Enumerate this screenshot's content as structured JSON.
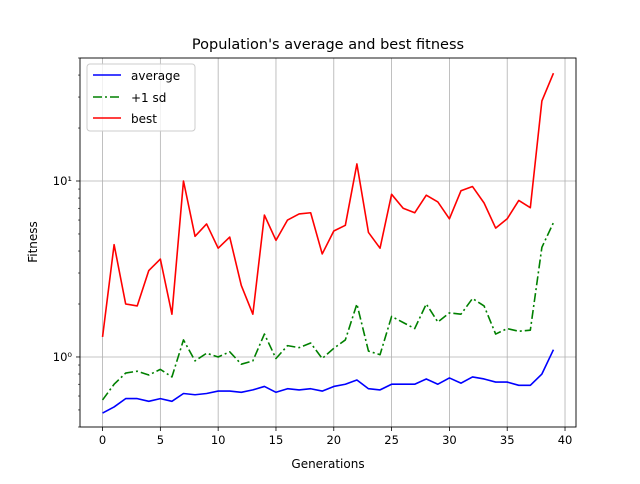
{
  "chart_data": {
    "type": "line",
    "title": "Population's average and best fitness",
    "xlabel": "Generations",
    "ylabel": "Fitness",
    "yscale": "log",
    "grid": true,
    "legend_position": "top-left",
    "xlim": [
      -1.95,
      40.95
    ],
    "ylim": [
      0.4,
      50
    ],
    "xticks": [
      0,
      5,
      10,
      15,
      20,
      25,
      30,
      35,
      40
    ],
    "xtick_labels": [
      "0",
      "5",
      "10",
      "15",
      "20",
      "25",
      "30",
      "35",
      "40"
    ],
    "yticks": [
      1,
      10
    ],
    "ytick_labels": [
      "10⁰",
      "10¹"
    ],
    "x": [
      0,
      1,
      2,
      3,
      4,
      5,
      6,
      7,
      8,
      9,
      10,
      11,
      12,
      13,
      14,
      15,
      16,
      17,
      18,
      19,
      20,
      21,
      22,
      23,
      24,
      25,
      26,
      27,
      28,
      29,
      30,
      31,
      32,
      33,
      34,
      35,
      36,
      37,
      38,
      39
    ],
    "series": [
      {
        "name": "average",
        "color": "#0000ff",
        "style": "solid",
        "values": [
          0.48,
          0.52,
          0.58,
          0.58,
          0.56,
          0.58,
          0.56,
          0.62,
          0.61,
          0.62,
          0.64,
          0.64,
          0.63,
          0.65,
          0.68,
          0.63,
          0.66,
          0.65,
          0.66,
          0.64,
          0.68,
          0.7,
          0.74,
          0.66,
          0.65,
          0.7,
          0.7,
          0.7,
          0.75,
          0.7,
          0.76,
          0.71,
          0.77,
          0.75,
          0.72,
          0.72,
          0.69,
          0.69,
          0.8,
          1.1
        ]
      },
      {
        "name": "+1 sd",
        "color": "#008000",
        "style": "dashdot",
        "values": [
          0.57,
          0.7,
          0.81,
          0.83,
          0.79,
          0.85,
          0.77,
          1.25,
          0.95,
          1.05,
          1.0,
          1.07,
          0.91,
          0.95,
          1.35,
          0.98,
          1.16,
          1.13,
          1.2,
          0.98,
          1.12,
          1.25,
          2.0,
          1.08,
          1.03,
          1.7,
          1.57,
          1.45,
          2.0,
          1.58,
          1.78,
          1.75,
          2.15,
          1.95,
          1.35,
          1.45,
          1.4,
          1.42,
          4.2,
          5.8
        ]
      },
      {
        "name": "best",
        "color": "#ff0000",
        "style": "solid",
        "values": [
          1.3,
          4.35,
          2.0,
          1.95,
          3.1,
          3.6,
          1.75,
          10.0,
          4.85,
          5.7,
          4.15,
          4.8,
          2.55,
          1.75,
          6.4,
          4.6,
          6.0,
          6.5,
          6.6,
          3.85,
          5.2,
          5.6,
          12.5,
          5.1,
          4.15,
          8.4,
          7.0,
          6.6,
          8.3,
          7.6,
          6.1,
          8.8,
          9.3,
          7.5,
          5.4,
          6.1,
          7.75,
          7.05,
          28.5,
          41.0
        ]
      }
    ]
  }
}
